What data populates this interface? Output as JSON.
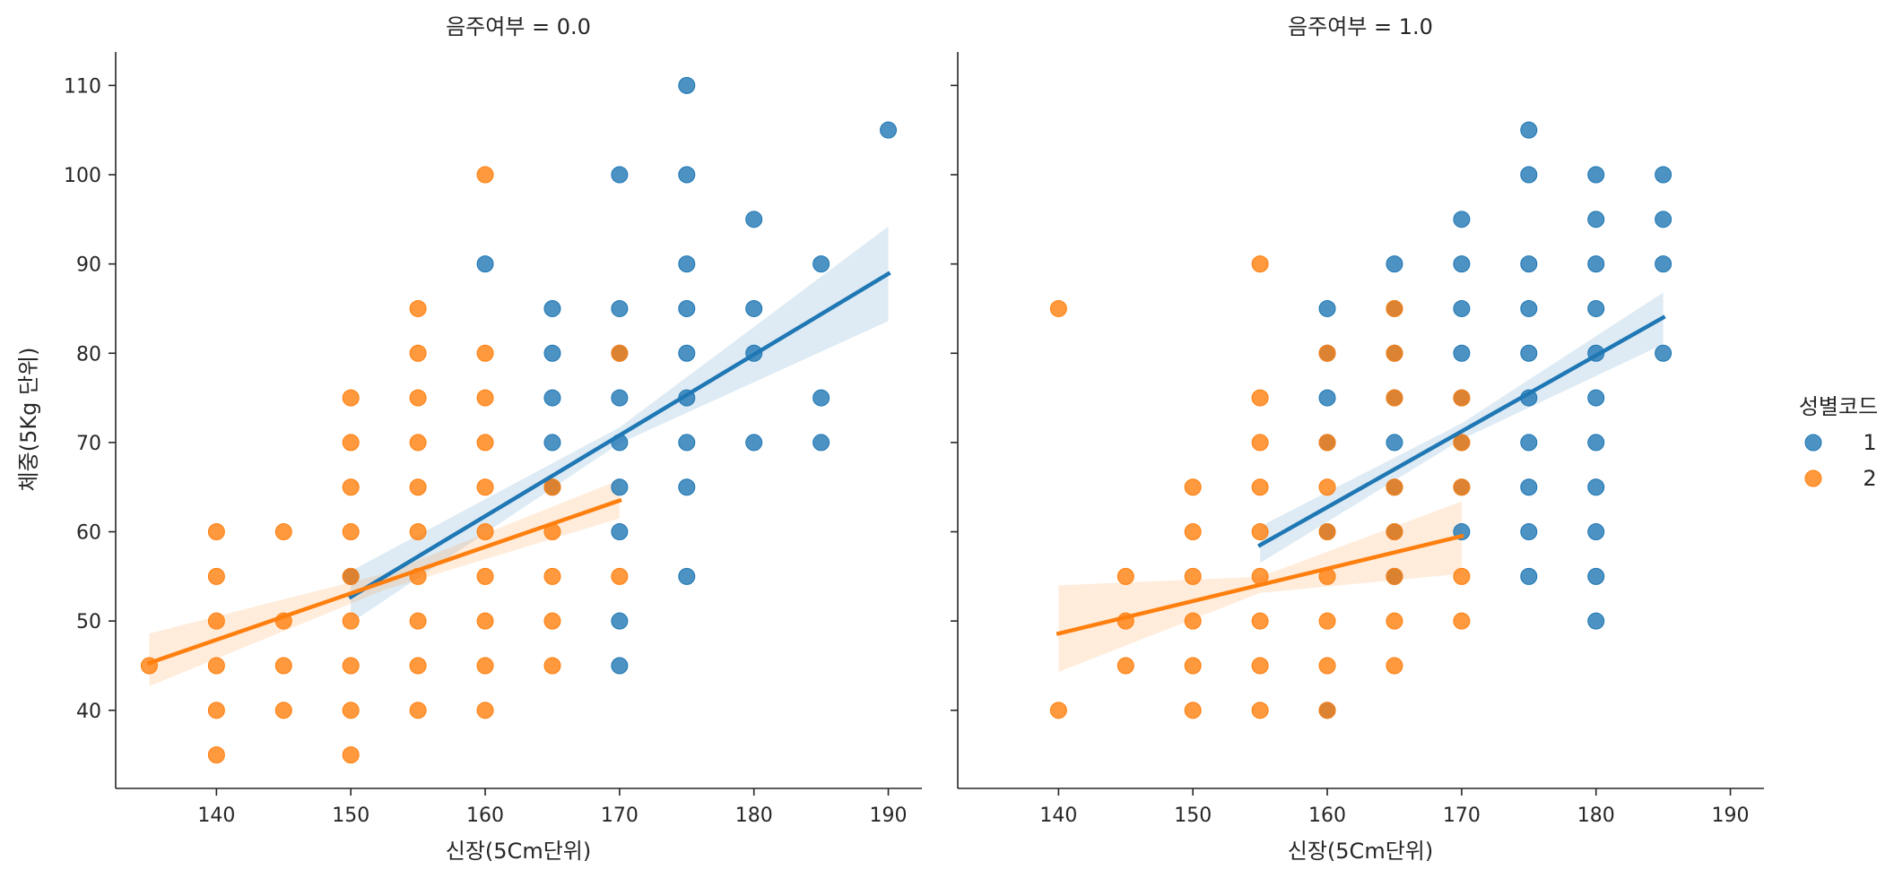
{
  "chart_data": [
    {
      "type": "scatter",
      "title": "음주여부 = 0.0",
      "xlabel": "신장(5Cm단위)",
      "ylabel": "체중(5Kg 단위)",
      "xlim": [
        132.5,
        192.5
      ],
      "ylim": [
        31.25,
        113.75
      ],
      "xticks": [
        140,
        150,
        160,
        170,
        180,
        190
      ],
      "yticks": [
        40,
        50,
        60,
        70,
        80,
        90,
        100,
        110
      ],
      "grid": false,
      "series": [
        {
          "name": "1",
          "color": "#1f77b4",
          "points": [
            [
              150,
              55
            ],
            [
              160,
              90
            ],
            [
              165,
              85
            ],
            [
              165,
              80
            ],
            [
              165,
              75
            ],
            [
              165,
              70
            ],
            [
              165,
              65
            ],
            [
              170,
              100
            ],
            [
              170,
              85
            ],
            [
              170,
              80
            ],
            [
              170,
              75
            ],
            [
              170,
              70
            ],
            [
              170,
              65
            ],
            [
              170,
              60
            ],
            [
              170,
              50
            ],
            [
              170,
              45
            ],
            [
              175,
              110
            ],
            [
              175,
              100
            ],
            [
              175,
              90
            ],
            [
              175,
              85
            ],
            [
              175,
              80
            ],
            [
              175,
              75
            ],
            [
              175,
              70
            ],
            [
              175,
              65
            ],
            [
              175,
              55
            ],
            [
              180,
              95
            ],
            [
              180,
              85
            ],
            [
              180,
              80
            ],
            [
              180,
              70
            ],
            [
              185,
              90
            ],
            [
              185,
              75
            ],
            [
              185,
              70
            ],
            [
              190,
              105
            ]
          ],
          "regression": {
            "x": [
              150,
              190
            ],
            "y": [
              52.7,
              88.9
            ],
            "ci_low_start": 49.8,
            "ci_high_start": 55.6,
            "ci_low_end": 83.6,
            "ci_high_end": 94.2
          }
        },
        {
          "name": "2",
          "color": "#ff7f0e",
          "points": [
            [
              135,
              45
            ],
            [
              140,
              60
            ],
            [
              140,
              55
            ],
            [
              140,
              50
            ],
            [
              140,
              45
            ],
            [
              140,
              40
            ],
            [
              140,
              35
            ],
            [
              145,
              60
            ],
            [
              145,
              50
            ],
            [
              145,
              45
            ],
            [
              145,
              40
            ],
            [
              150,
              75
            ],
            [
              150,
              70
            ],
            [
              150,
              65
            ],
            [
              150,
              60
            ],
            [
              150,
              55
            ],
            [
              150,
              50
            ],
            [
              150,
              45
            ],
            [
              150,
              40
            ],
            [
              150,
              35
            ],
            [
              155,
              85
            ],
            [
              155,
              80
            ],
            [
              155,
              75
            ],
            [
              155,
              70
            ],
            [
              155,
              65
            ],
            [
              155,
              60
            ],
            [
              155,
              55
            ],
            [
              155,
              50
            ],
            [
              155,
              45
            ],
            [
              155,
              40
            ],
            [
              160,
              100
            ],
            [
              160,
              80
            ],
            [
              160,
              75
            ],
            [
              160,
              70
            ],
            [
              160,
              65
            ],
            [
              160,
              60
            ],
            [
              160,
              55
            ],
            [
              160,
              50
            ],
            [
              160,
              45
            ],
            [
              160,
              40
            ],
            [
              165,
              65
            ],
            [
              165,
              60
            ],
            [
              165,
              55
            ],
            [
              165,
              50
            ],
            [
              165,
              45
            ],
            [
              170,
              80
            ],
            [
              170,
              55
            ]
          ],
          "regression": {
            "x": [
              135,
              170
            ],
            "y": [
              45.3,
              63.5
            ],
            "ci_low_start": 42.7,
            "ci_high_start": 48.6,
            "ci_low_end": 61.5,
            "ci_high_end": 65.8
          }
        }
      ]
    },
    {
      "type": "scatter",
      "title": "음주여부 = 1.0",
      "xlabel": "신장(5Cm단위)",
      "ylabel": "",
      "xlim": [
        132.5,
        192.5
      ],
      "ylim": [
        31.25,
        113.75
      ],
      "xticks": [
        140,
        150,
        160,
        170,
        180,
        190
      ],
      "yticks": [
        40,
        50,
        60,
        70,
        80,
        90,
        100,
        110
      ],
      "grid": false,
      "series": [
        {
          "name": "1",
          "color": "#1f77b4",
          "points": [
            [
              160,
              85
            ],
            [
              160,
              80
            ],
            [
              160,
              75
            ],
            [
              160,
              70
            ],
            [
              160,
              60
            ],
            [
              160,
              40
            ],
            [
              165,
              90
            ],
            [
              165,
              85
            ],
            [
              165,
              80
            ],
            [
              165,
              75
            ],
            [
              165,
              70
            ],
            [
              165,
              65
            ],
            [
              165,
              60
            ],
            [
              165,
              55
            ],
            [
              170,
              95
            ],
            [
              170,
              90
            ],
            [
              170,
              85
            ],
            [
              170,
              80
            ],
            [
              170,
              75
            ],
            [
              170,
              70
            ],
            [
              170,
              65
            ],
            [
              170,
              60
            ],
            [
              175,
              105
            ],
            [
              175,
              100
            ],
            [
              175,
              90
            ],
            [
              175,
              85
            ],
            [
              175,
              80
            ],
            [
              175,
              75
            ],
            [
              175,
              70
            ],
            [
              175,
              65
            ],
            [
              175,
              60
            ],
            [
              175,
              55
            ],
            [
              180,
              100
            ],
            [
              180,
              95
            ],
            [
              180,
              90
            ],
            [
              180,
              85
            ],
            [
              180,
              80
            ],
            [
              180,
              75
            ],
            [
              180,
              70
            ],
            [
              180,
              65
            ],
            [
              180,
              60
            ],
            [
              180,
              55
            ],
            [
              180,
              50
            ],
            [
              185,
              100
            ],
            [
              185,
              95
            ],
            [
              185,
              90
            ],
            [
              185,
              80
            ]
          ],
          "regression": {
            "x": [
              155,
              185
            ],
            "y": [
              58.5,
              84.0
            ],
            "ci_low_start": 56.5,
            "ci_high_start": 60.6,
            "ci_low_end": 81.0,
            "ci_high_end": 86.8
          }
        },
        {
          "name": "2",
          "color": "#ff7f0e",
          "points": [
            [
              140,
              85
            ],
            [
              140,
              40
            ],
            [
              145,
              55
            ],
            [
              145,
              50
            ],
            [
              145,
              45
            ],
            [
              150,
              65
            ],
            [
              150,
              60
            ],
            [
              150,
              55
            ],
            [
              150,
              50
            ],
            [
              150,
              45
            ],
            [
              150,
              40
            ],
            [
              155,
              90
            ],
            [
              155,
              75
            ],
            [
              155,
              70
            ],
            [
              155,
              65
            ],
            [
              155,
              60
            ],
            [
              155,
              55
            ],
            [
              155,
              50
            ],
            [
              155,
              45
            ],
            [
              155,
              40
            ],
            [
              160,
              80
            ],
            [
              160,
              70
            ],
            [
              160,
              65
            ],
            [
              160,
              60
            ],
            [
              160,
              55
            ],
            [
              160,
              50
            ],
            [
              160,
              45
            ],
            [
              160,
              40
            ],
            [
              165,
              85
            ],
            [
              165,
              80
            ],
            [
              165,
              75
            ],
            [
              165,
              65
            ],
            [
              165,
              60
            ],
            [
              165,
              55
            ],
            [
              165,
              50
            ],
            [
              165,
              45
            ],
            [
              170,
              75
            ],
            [
              170,
              70
            ],
            [
              170,
              65
            ],
            [
              170,
              55
            ],
            [
              170,
              50
            ]
          ],
          "regression": {
            "x": [
              140,
              170
            ],
            "y": [
              48.6,
              59.5
            ],
            "ci_low_start": 44.3,
            "ci_high_start": 54.0,
            "ci_low_end": 55.3,
            "ci_high_end": 63.4
          }
        }
      ]
    }
  ],
  "legend": {
    "title": "성별코드",
    "placement": "right",
    "items": [
      {
        "label": "1",
        "color": "#1f77b4"
      },
      {
        "label": "2",
        "color": "#ff7f0e"
      }
    ]
  }
}
